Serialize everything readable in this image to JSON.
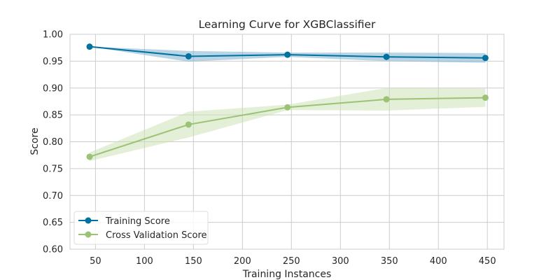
{
  "chart_data": {
    "type": "line",
    "title": "Learning Curve for XGBClassifier",
    "xlabel": "Training Instances",
    "ylabel": "Score",
    "xlim": [
      24,
      467
    ],
    "ylim": [
      0.6,
      1.0
    ],
    "xticks": [
      50,
      100,
      150,
      200,
      250,
      300,
      350,
      400,
      450
    ],
    "yticks": [
      0.6,
      0.65,
      0.7,
      0.75,
      0.8,
      0.85,
      0.9,
      0.95,
      1.0
    ],
    "ytick_labels": [
      "0.60",
      "0.65",
      "0.70",
      "0.75",
      "0.80",
      "0.85",
      "0.90",
      "0.95",
      "1.00"
    ],
    "grid": true,
    "legend_position": "lower-left",
    "x": [
      44,
      145,
      246,
      347,
      448
    ],
    "series": [
      {
        "name": "Training Score",
        "color": "#0072a0",
        "band_color": "#7fb3d0",
        "values": [
          0.977,
          0.959,
          0.962,
          0.958,
          0.956
        ],
        "lower": [
          0.977,
          0.949,
          0.958,
          0.95,
          0.947
        ],
        "upper": [
          0.977,
          0.969,
          0.966,
          0.966,
          0.965
        ]
      },
      {
        "name": "Cross Validation Score",
        "color": "#9bc275",
        "band_color": "#c9dfb0",
        "values": [
          0.772,
          0.832,
          0.864,
          0.879,
          0.882
        ],
        "lower": [
          0.764,
          0.808,
          0.859,
          0.858,
          0.865
        ],
        "upper": [
          0.78,
          0.856,
          0.869,
          0.9,
          0.899
        ]
      }
    ]
  }
}
